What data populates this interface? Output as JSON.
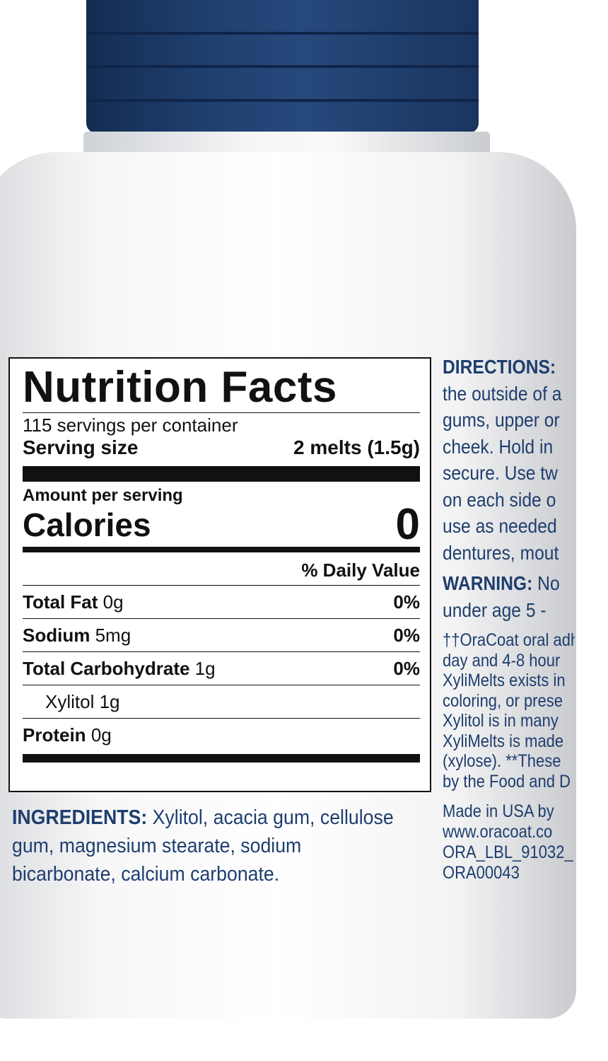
{
  "colors": {
    "cap": "#1f3f6e",
    "label_text": "#1e3e6e",
    "nutrition_text": "#111111"
  },
  "nutrition": {
    "title": "Nutrition Facts",
    "servings": "115 servings per container",
    "serving_size_label": "Serving size",
    "serving_size_value": "2 melts (1.5g)",
    "amount_per_serving": "Amount per serving",
    "calories_label": "Calories",
    "calories_value": "0",
    "dv_header": "% Daily Value",
    "rows": [
      {
        "name": "Total Fat",
        "amount": "0g",
        "dv": "0%"
      },
      {
        "name": "Sodium",
        "amount": "5mg",
        "dv": "0%"
      },
      {
        "name": "Total Carbohydrate",
        "amount": "1g",
        "dv": "0%"
      },
      {
        "name": "Xylitol",
        "amount": "1g",
        "dv": ""
      },
      {
        "name": "Protein",
        "amount": "0g",
        "dv": ""
      }
    ]
  },
  "ingredients": {
    "label": "INGREDIENTS:",
    "text": " Xylitol, acacia gum, cellulose gum, magnesium stearate, sodium bicarbonate, calcium carbonate."
  },
  "directions": {
    "label": "DIRECTIONS:",
    "lines": [
      "the outside of a",
      "gums, upper or",
      "cheek. Hold in",
      "secure. Use tw",
      "on each side o",
      "use as needed",
      "dentures, mout"
    ]
  },
  "warning": {
    "label": "WARNING:",
    "text": " No",
    "lines": [
      "under age 5 -"
    ]
  },
  "footnotes": [
    "††OraCoat oral adh",
    "day and 4-8 hour",
    "XyliMelts exists in",
    "coloring, or prese",
    "Xylitol is in many",
    "XyliMelts is made",
    "(xylose). **These",
    "by the Food and D"
  ],
  "maker": [
    "Made in USA by",
    "www.oracoat.co",
    "ORA_LBL_91032_",
    "ORA00043"
  ]
}
